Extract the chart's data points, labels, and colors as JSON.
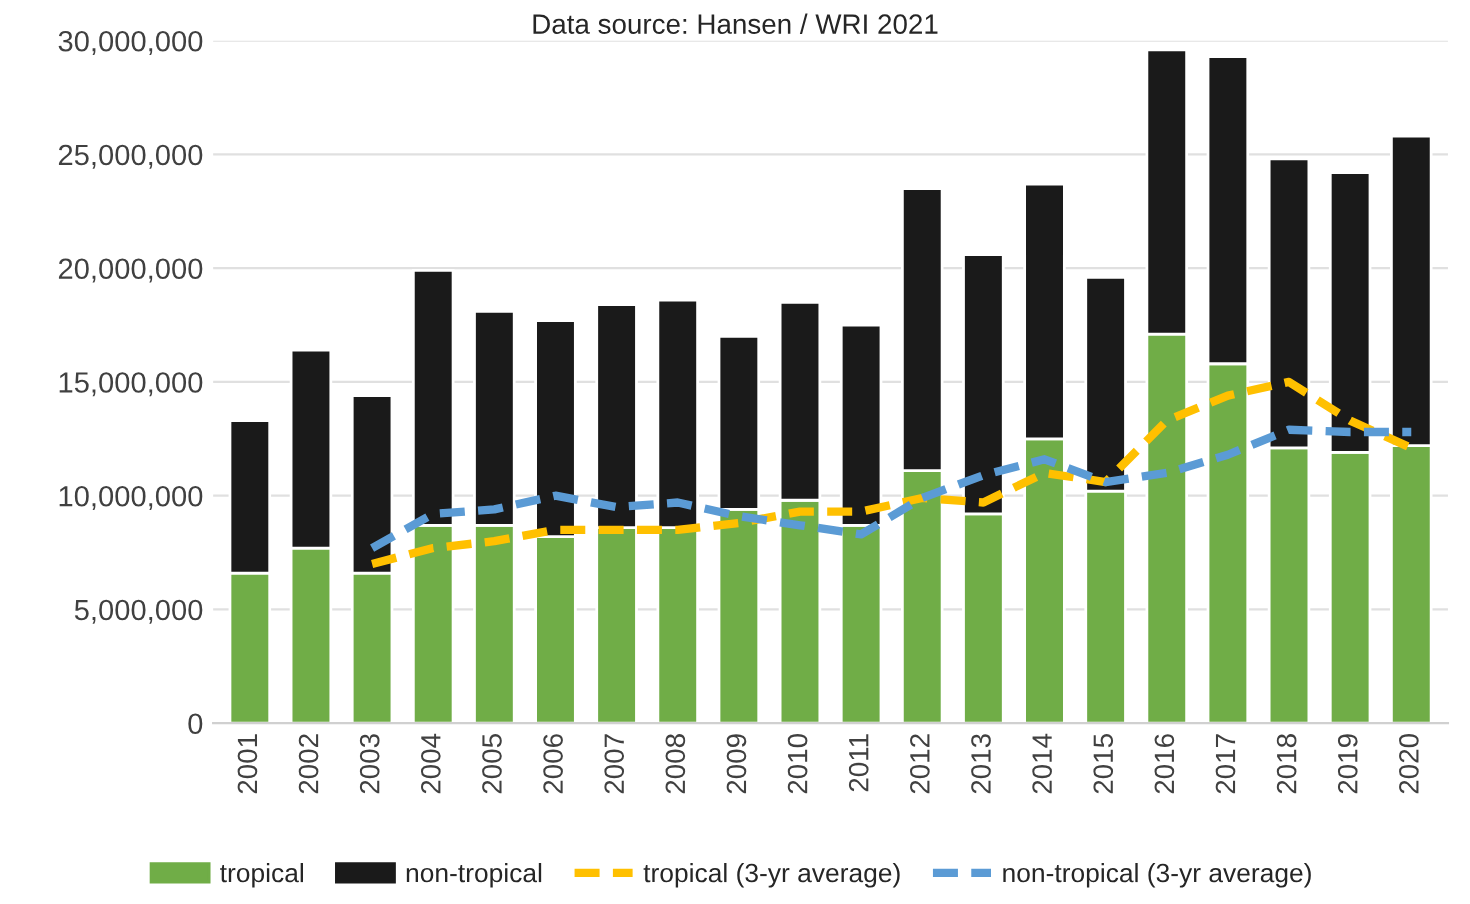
{
  "chart_data": {
    "type": "bar",
    "stacked": true,
    "annotations": [
      "Data source: Hansen / WRI 2021"
    ],
    "categories": [
      "2001",
      "2002",
      "2003",
      "2004",
      "2005",
      "2006",
      "2007",
      "2008",
      "2009",
      "2010",
      "2011",
      "2012",
      "2013",
      "2014",
      "2015",
      "2016",
      "2017",
      "2018",
      "2019",
      "2020"
    ],
    "series": [
      {
        "name": "tropical",
        "color": "#70ad47",
        "values": [
          6600000,
          7700000,
          6600000,
          8700000,
          8700000,
          8200000,
          8600000,
          8600000,
          9400000,
          9800000,
          8700000,
          11100000,
          9200000,
          12500000,
          10200000,
          17100000,
          15800000,
          12100000,
          11900000,
          12200000
        ]
      },
      {
        "name": "non-tropical",
        "color": "#1a1a1a",
        "values": [
          6700000,
          8700000,
          7800000,
          11200000,
          9400000,
          9500000,
          9800000,
          10000000,
          7600000,
          8700000,
          8800000,
          12400000,
          11400000,
          11200000,
          9400000,
          12500000,
          13500000,
          12700000,
          12300000,
          13600000
        ]
      },
      {
        "name": "tropical (3-yr average)",
        "type": "line",
        "line_style": "dashed",
        "color": "#ffc000",
        "values": [
          null,
          null,
          7000000,
          7700000,
          8000000,
          8500000,
          8500000,
          8500000,
          8800000,
          9300000,
          9300000,
          9900000,
          9700000,
          11000000,
          10600000,
          13300000,
          14400000,
          15000000,
          13300000,
          12100000
        ]
      },
      {
        "name": "non-tropical (3-yr average)",
        "type": "line",
        "line_style": "dashed",
        "color": "#5b9bd5",
        "values": [
          null,
          null,
          7700000,
          9200000,
          9400000,
          10000000,
          9500000,
          9700000,
          9100000,
          8700000,
          8300000,
          9900000,
          10900000,
          11600000,
          10600000,
          11000000,
          11800000,
          12900000,
          12800000,
          12800000
        ]
      }
    ],
    "ylim": [
      0,
      30000000
    ],
    "yticks": [
      {
        "value": 0,
        "label": "0"
      },
      {
        "value": 5000000,
        "label": "5,000,000"
      },
      {
        "value": 10000000,
        "label": "10,000,000"
      },
      {
        "value": 15000000,
        "label": "15,000,000"
      },
      {
        "value": 20000000,
        "label": "20,000,000"
      },
      {
        "value": 25000000,
        "label": "25,000,000"
      },
      {
        "value": 30000000,
        "label": "30,000,000"
      }
    ],
    "grid": "y",
    "legend": "bottom"
  }
}
